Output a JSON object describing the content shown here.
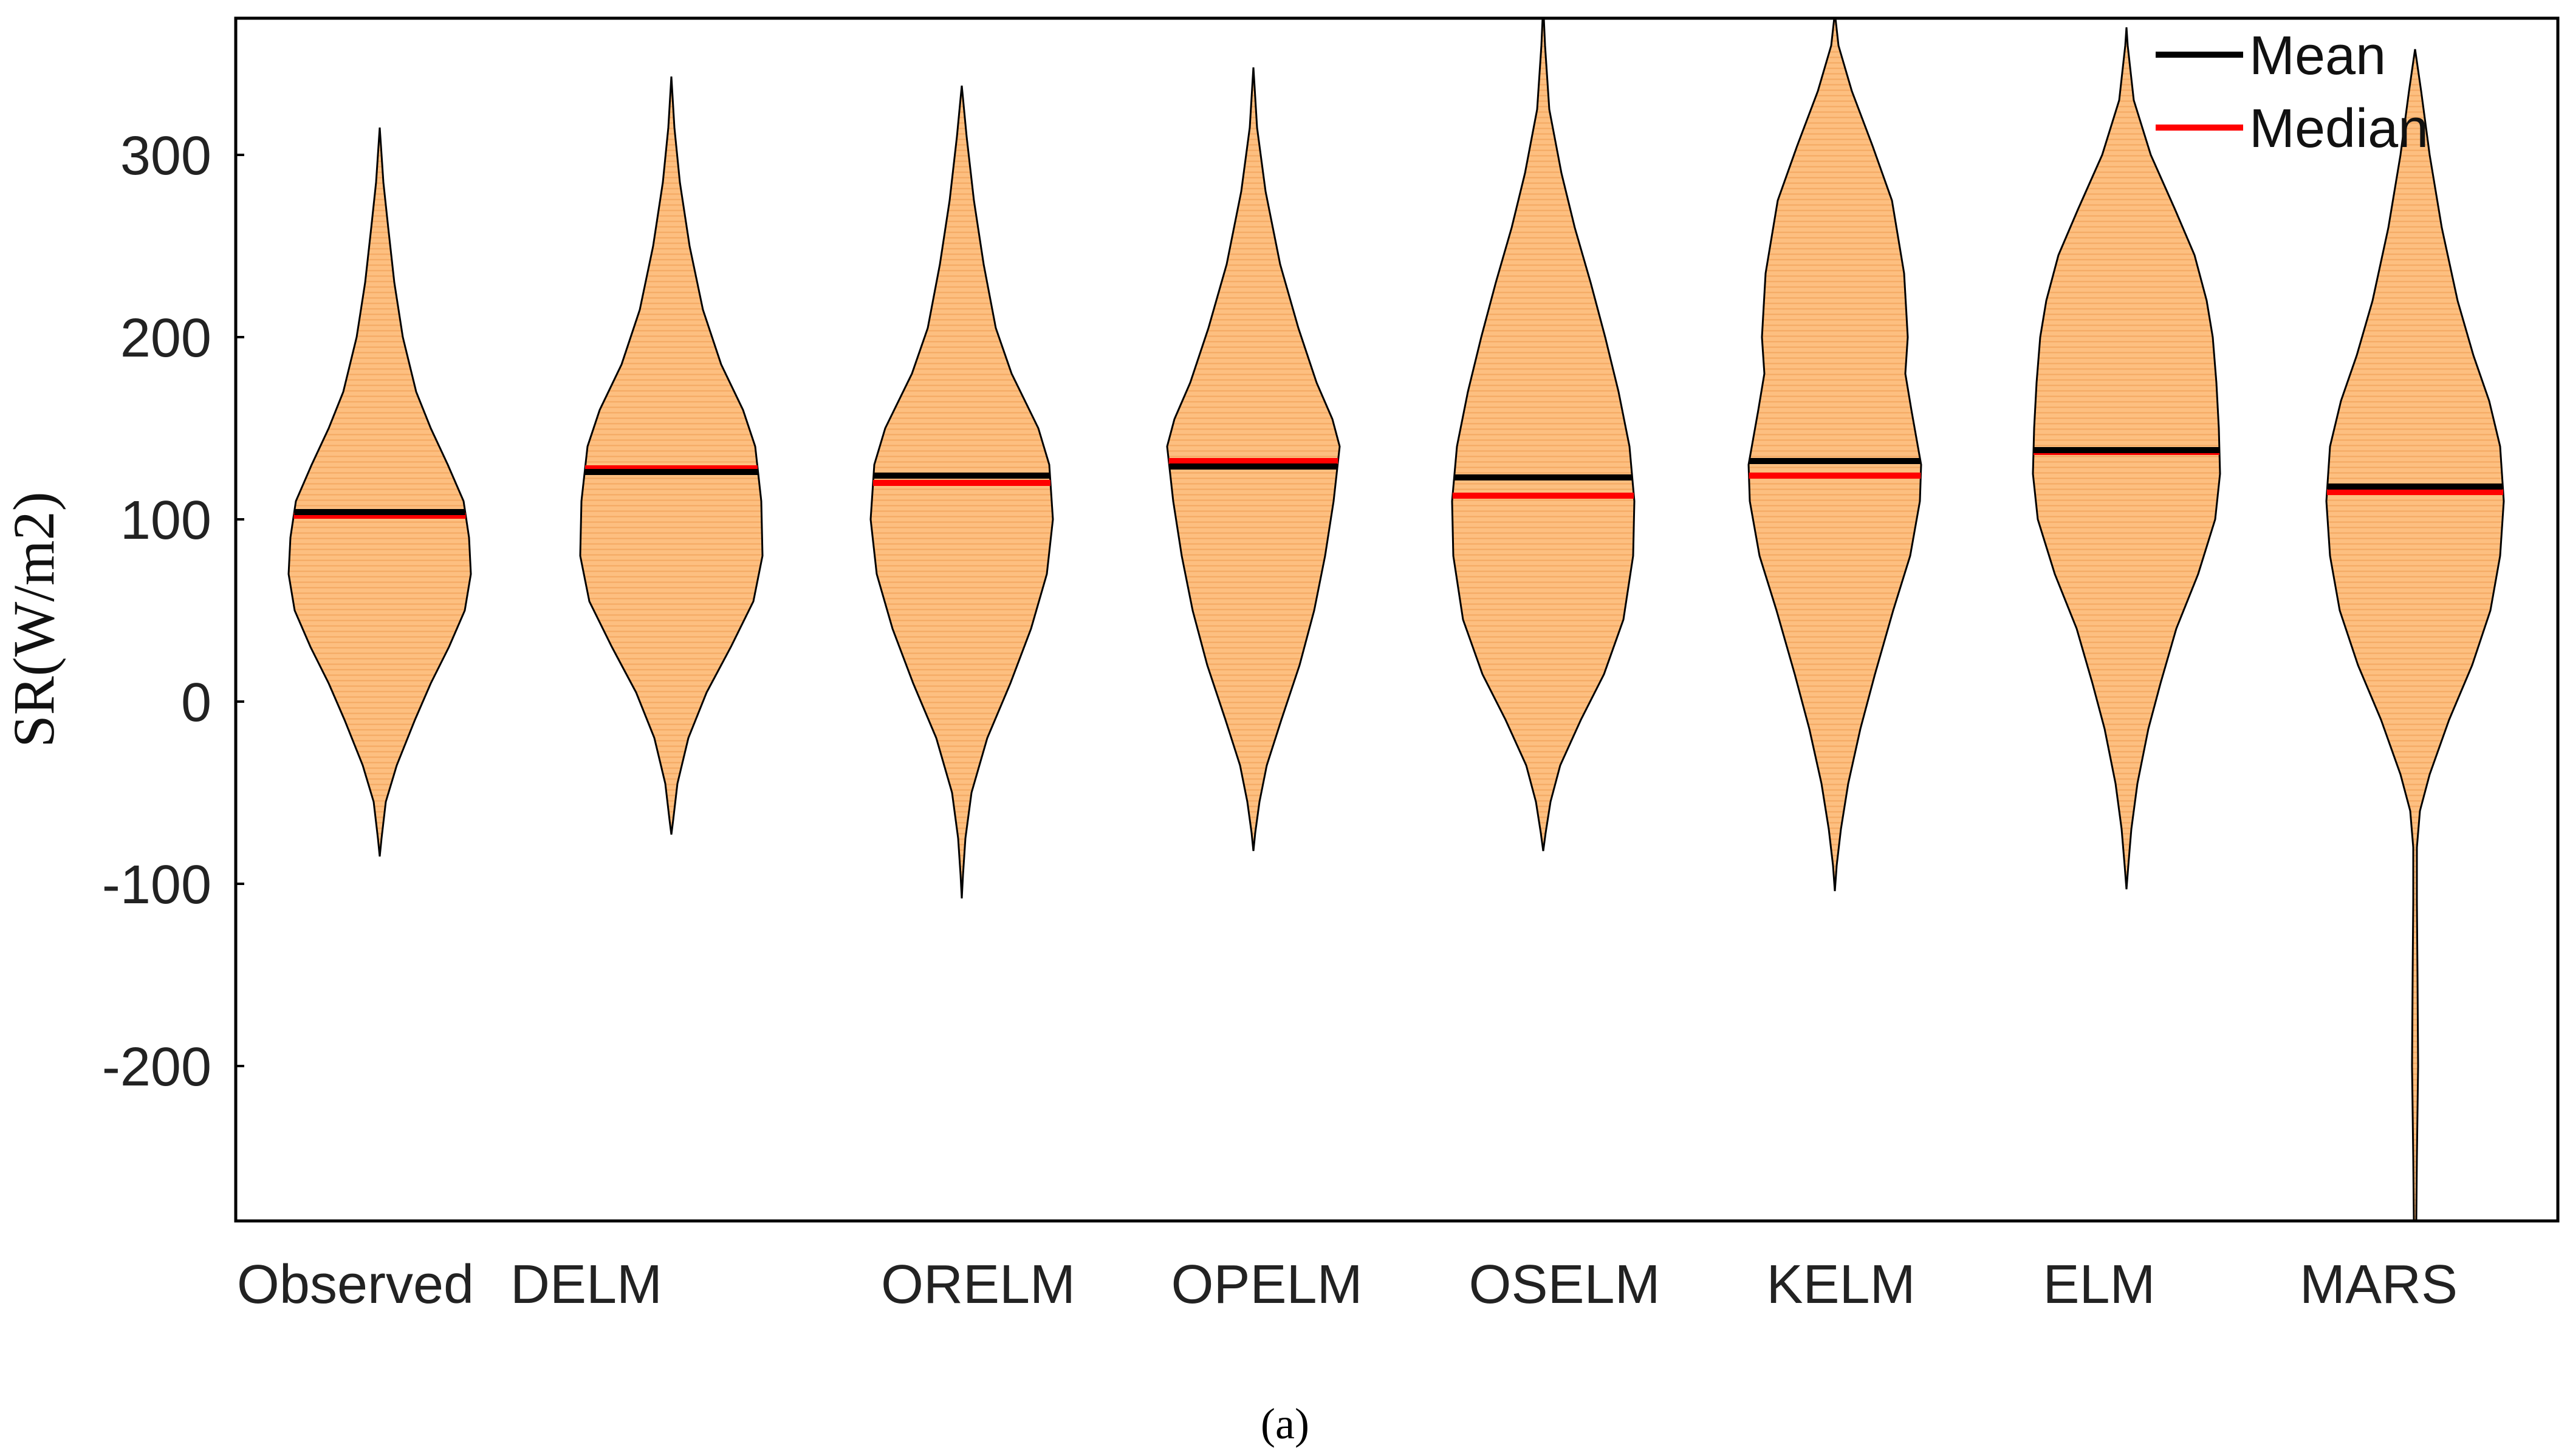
{
  "chart_data": {
    "type": "violin",
    "ylabel": "SR(W/m2)",
    "ylim": [
      -285,
      375
    ],
    "yticks": [
      300,
      200,
      100,
      0,
      -100,
      -200
    ],
    "categories": [
      "Observed",
      "DELM",
      "ORELM",
      "OPELM",
      "OSELM",
      "KELM",
      "ELM",
      "MARS"
    ],
    "series": [
      {
        "name": "Observed",
        "mean": 104,
        "median": 102,
        "min": -85,
        "max": 315
      },
      {
        "name": "DELM",
        "mean": 126,
        "median": 128,
        "min": -73,
        "max": 343
      },
      {
        "name": "ORELM",
        "mean": 124,
        "median": 120,
        "min": -108,
        "max": 338
      },
      {
        "name": "OPELM",
        "mean": 129,
        "median": 132,
        "min": -82,
        "max": 348
      },
      {
        "name": "OSELM",
        "mean": 123,
        "median": 113,
        "min": -82,
        "max": 375
      },
      {
        "name": "KELM",
        "mean": 132,
        "median": 124,
        "min": -104,
        "max": 375
      },
      {
        "name": "ELM",
        "mean": 138,
        "median": 137,
        "min": -103,
        "max": 370
      },
      {
        "name": "MARS",
        "mean": 118,
        "median": 115,
        "min": -285,
        "max": 358
      }
    ],
    "legend": {
      "position": "top-right",
      "entries": [
        {
          "label": "Mean",
          "color": "#000000"
        },
        {
          "label": "Median",
          "color": "#ff0000"
        }
      ]
    },
    "colors": {
      "fill": "#fdbf80",
      "stroke": "#000000",
      "mean": "#000000",
      "median": "#ff0000"
    },
    "grid": false
  },
  "caption": "(a)"
}
